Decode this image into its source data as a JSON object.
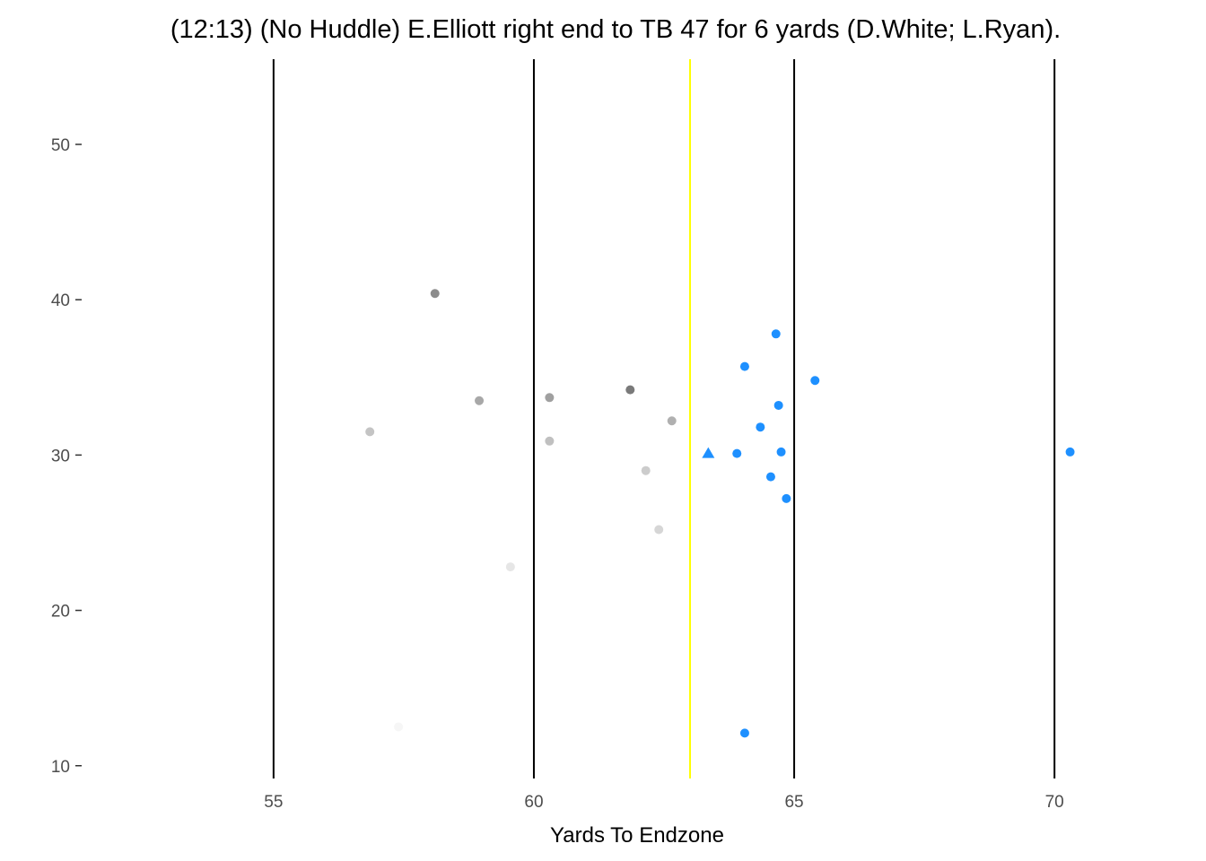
{
  "chart_data": {
    "type": "scatter",
    "title": "(12:13) (No Huddle) E.Elliott right end to TB 47 for 6 yards (D.White; L.Ryan).",
    "xlabel": "Yards To Endzone",
    "ylabel": "",
    "xlim": [
      51.4,
      72.6
    ],
    "ylim": [
      8.6,
      55.6
    ],
    "x_ticks": [
      "55",
      "60",
      "65",
      "70"
    ],
    "y_ticks": [
      "10",
      "20",
      "30",
      "40",
      "50"
    ],
    "grid": false,
    "yard_lines": [
      55,
      60,
      65,
      70
    ],
    "yard_line_color": "#000000",
    "line_of_scrimmage": 63,
    "line_of_scrimmage_color": "#ffff00",
    "offense_color": "#1e90ff",
    "ball": {
      "x": 63.35,
      "y": 30.1,
      "color": "#1e90ff",
      "shape": "triangle"
    },
    "offense": [
      {
        "x": 64.65,
        "y": 37.8
      },
      {
        "x": 64.05,
        "y": 35.7
      },
      {
        "x": 65.4,
        "y": 34.8
      },
      {
        "x": 64.7,
        "y": 33.2
      },
      {
        "x": 64.35,
        "y": 31.8
      },
      {
        "x": 63.9,
        "y": 30.1
      },
      {
        "x": 64.75,
        "y": 30.2
      },
      {
        "x": 64.55,
        "y": 28.6
      },
      {
        "x": 64.85,
        "y": 27.2
      },
      {
        "x": 70.3,
        "y": 30.2
      },
      {
        "x": 64.05,
        "y": 12.1
      }
    ],
    "defense": [
      {
        "x": 58.1,
        "y": 40.4,
        "color": "#8c8c8c"
      },
      {
        "x": 61.85,
        "y": 34.2,
        "color": "#7a7a7a"
      },
      {
        "x": 60.3,
        "y": 33.7,
        "color": "#a0a0a0"
      },
      {
        "x": 58.95,
        "y": 33.5,
        "color": "#a8a8a8"
      },
      {
        "x": 62.65,
        "y": 32.2,
        "color": "#b0b0b0"
      },
      {
        "x": 56.85,
        "y": 31.5,
        "color": "#c4c4c4"
      },
      {
        "x": 60.3,
        "y": 30.9,
        "color": "#c0c0c0"
      },
      {
        "x": 62.15,
        "y": 29.0,
        "color": "#cccccc"
      },
      {
        "x": 62.4,
        "y": 25.2,
        "color": "#d6d6d6"
      },
      {
        "x": 59.55,
        "y": 22.8,
        "color": "#e6e6e6"
      },
      {
        "x": 57.4,
        "y": 12.5,
        "color": "#f6f6f6"
      }
    ]
  }
}
